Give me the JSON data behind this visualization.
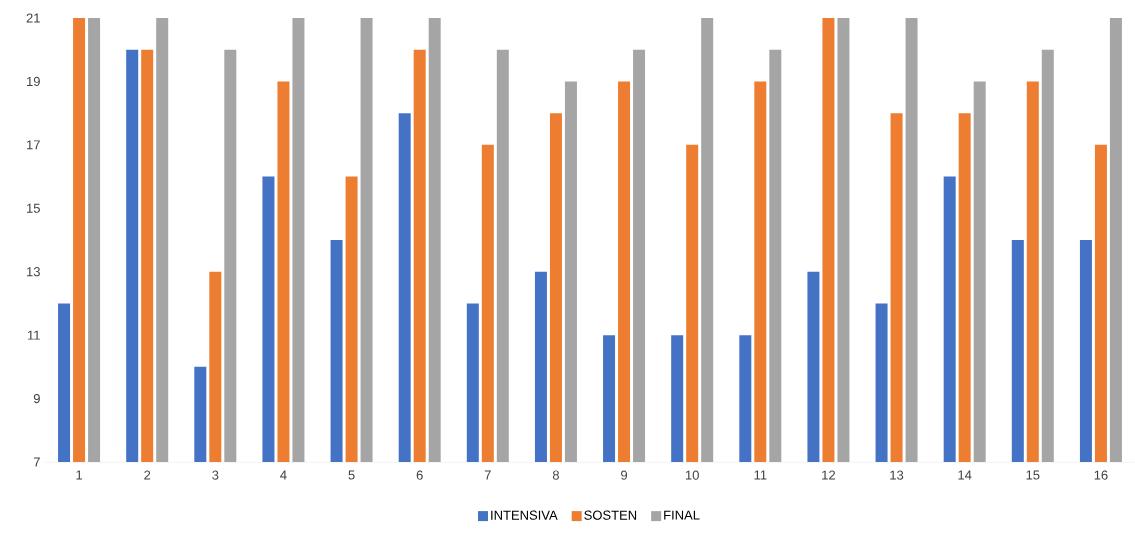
{
  "chart_data": {
    "type": "bar",
    "categories": [
      "1",
      "2",
      "3",
      "4",
      "5",
      "6",
      "7",
      "8",
      "9",
      "10",
      "11",
      "12",
      "13",
      "14",
      "15",
      "16"
    ],
    "series": [
      {
        "name": "INTENSIVA",
        "color": "#4472c4",
        "values": [
          12,
          20,
          10,
          16,
          14,
          18,
          12,
          13,
          11,
          11,
          11,
          13,
          12,
          16,
          14,
          14
        ]
      },
      {
        "name": "SOSTEN",
        "color": "#ed7d31",
        "values": [
          21,
          20,
          13,
          19,
          16,
          20,
          17,
          18,
          19,
          17,
          19,
          21,
          18,
          18,
          19,
          17
        ]
      },
      {
        "name": "FINAL",
        "color": "#a5a5a5",
        "values": [
          21,
          21,
          20,
          21,
          21,
          21,
          20,
          19,
          20,
          21,
          20,
          21,
          21,
          19,
          20,
          21
        ]
      }
    ],
    "ylim": [
      7,
      21
    ],
    "yticks": [
      7,
      9,
      11,
      13,
      15,
      17,
      19,
      21
    ],
    "grid": false,
    "legend": "bottom"
  }
}
